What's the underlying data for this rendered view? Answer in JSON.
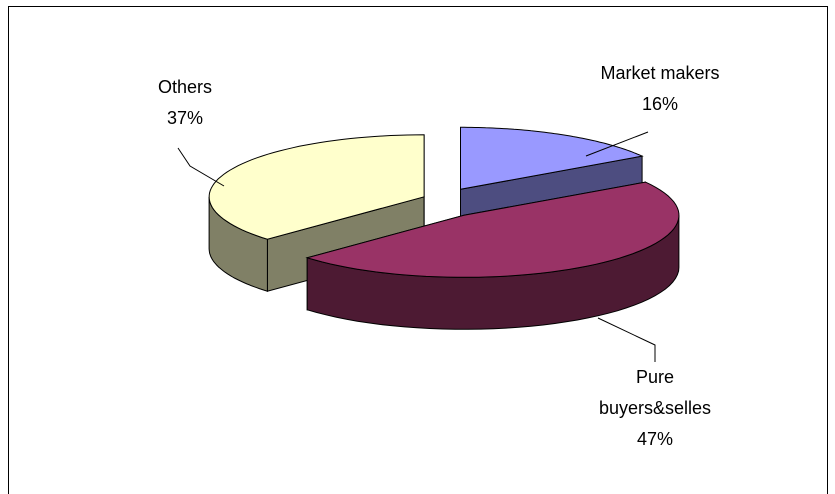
{
  "chart_data": {
    "type": "pie3d",
    "categories": [
      "Market makers",
      "Pure buyers&selles",
      "Others"
    ],
    "values": [
      16,
      47,
      37
    ],
    "value_labels": [
      "16%",
      "47%",
      "37%"
    ],
    "colors": [
      "#9999ff",
      "#993366",
      "#ffffcc"
    ],
    "side_colors": [
      "#4d4d80",
      "#4d1a33",
      "#808066"
    ]
  }
}
